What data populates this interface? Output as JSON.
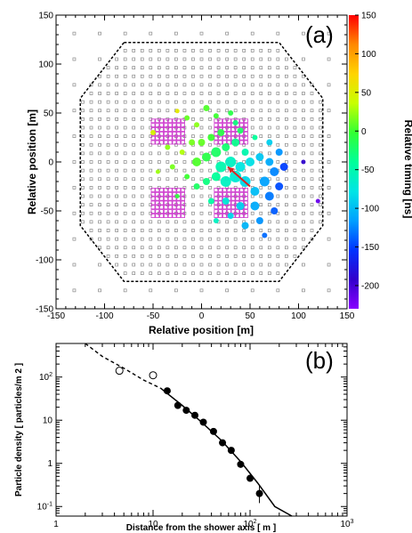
{
  "chart_data": [
    {
      "panel": "(a)",
      "type": "scatter",
      "xlabel": "Relative position [m]",
      "ylabel": "Relative position [m]",
      "xlim": [
        -150,
        150
      ],
      "ylim": [
        -150,
        150
      ],
      "xticks": [
        "-150",
        "-100",
        "-50",
        "0",
        "50",
        "100",
        "150"
      ],
      "yticks": [
        "150",
        "100",
        "50",
        "0",
        "-50",
        "-100",
        "-150"
      ],
      "colorbar": {
        "label": "Relative timing [ns]",
        "range": [
          -230,
          150
        ],
        "ticks": [
          "150",
          "100",
          "50",
          "0",
          "-50",
          "-100",
          "-150",
          "-200"
        ],
        "colors": [
          "#ff0000",
          "#ff8800",
          "#ffd400",
          "#c8ff00",
          "#33ff33",
          "#00ff99",
          "#00e5e5",
          "#00a0ff",
          "#0033ff",
          "#3300cc",
          "#8800ff"
        ]
      },
      "shower_direction_arrow": {
        "from": [
          50,
          -25
        ],
        "to": [
          27,
          -5
        ],
        "color": "#dd2222"
      },
      "array_boundary": [
        [
          -80,
          122
        ],
        [
          80,
          122
        ],
        [
          125,
          65
        ],
        [
          125,
          -65
        ],
        [
          80,
          -122
        ],
        [
          -80,
          -122
        ],
        [
          -125,
          -65
        ],
        [
          -125,
          65
        ]
      ],
      "hit_points": [
        {
          "x": -25,
          "y": 52,
          "t": 55,
          "r": 2.5
        },
        {
          "x": -50,
          "y": 30,
          "t": 45,
          "r": 3
        },
        {
          "x": -15,
          "y": 45,
          "t": 10,
          "r": 3
        },
        {
          "x": -5,
          "y": 38,
          "t": 20,
          "r": 3
        },
        {
          "x": 5,
          "y": 55,
          "t": 5,
          "r": 3.5
        },
        {
          "x": 15,
          "y": 47,
          "t": 0,
          "r": 3
        },
        {
          "x": 30,
          "y": 50,
          "t": -10,
          "r": 3
        },
        {
          "x": 40,
          "y": 32,
          "t": -20,
          "r": 3.5
        },
        {
          "x": 55,
          "y": 25,
          "t": -40,
          "r": 3
        },
        {
          "x": -35,
          "y": 15,
          "t": 20,
          "r": 3
        },
        {
          "x": -20,
          "y": 10,
          "t": 30,
          "r": 3
        },
        {
          "x": -10,
          "y": 20,
          "t": 15,
          "r": 3.5
        },
        {
          "x": 0,
          "y": 20,
          "t": 10,
          "r": 4
        },
        {
          "x": 10,
          "y": 25,
          "t": 0,
          "r": 4
        },
        {
          "x": 20,
          "y": 30,
          "t": -10,
          "r": 4
        },
        {
          "x": 25,
          "y": 15,
          "t": -25,
          "r": 4.5
        },
        {
          "x": 35,
          "y": 20,
          "t": -35,
          "r": 4.5
        },
        {
          "x": 45,
          "y": 10,
          "t": -50,
          "r": 4
        },
        {
          "x": -5,
          "y": 0,
          "t": 5,
          "r": 5
        },
        {
          "x": 5,
          "y": 5,
          "t": -10,
          "r": 5
        },
        {
          "x": 15,
          "y": 10,
          "t": -20,
          "r": 5.5
        },
        {
          "x": 20,
          "y": -5,
          "t": -50,
          "r": 6
        },
        {
          "x": 30,
          "y": 0,
          "t": -60,
          "r": 6
        },
        {
          "x": 40,
          "y": -5,
          "t": -75,
          "r": 5.5
        },
        {
          "x": 50,
          "y": 0,
          "t": -80,
          "r": 5
        },
        {
          "x": 60,
          "y": 5,
          "t": -95,
          "r": 4.5
        },
        {
          "x": 70,
          "y": 0,
          "t": -110,
          "r": 4.5
        },
        {
          "x": 75,
          "y": -10,
          "t": -125,
          "r": 5
        },
        {
          "x": 65,
          "y": -20,
          "t": -115,
          "r": 5.5
        },
        {
          "x": 55,
          "y": -30,
          "t": -100,
          "r": 5
        },
        {
          "x": 45,
          "y": -20,
          "t": -85,
          "r": 6
        },
        {
          "x": 35,
          "y": -15,
          "t": -70,
          "r": 6.5
        },
        {
          "x": 25,
          "y": -20,
          "t": -60,
          "r": 6
        },
        {
          "x": 15,
          "y": -15,
          "t": -40,
          "r": 5
        },
        {
          "x": 5,
          "y": -20,
          "t": -30,
          "r": 4
        },
        {
          "x": -5,
          "y": -25,
          "t": -20,
          "r": 3.5
        },
        {
          "x": -15,
          "y": -15,
          "t": 0,
          "r": 3
        },
        {
          "x": -30,
          "y": -5,
          "t": 15,
          "r": 3
        },
        {
          "x": -45,
          "y": -10,
          "t": 25,
          "r": 2.5
        },
        {
          "x": 10,
          "y": -40,
          "t": -45,
          "r": 3.5
        },
        {
          "x": 25,
          "y": -40,
          "t": -70,
          "r": 4
        },
        {
          "x": 40,
          "y": -45,
          "t": -90,
          "r": 4.5
        },
        {
          "x": 55,
          "y": -45,
          "t": -110,
          "r": 5
        },
        {
          "x": 70,
          "y": -35,
          "t": -130,
          "r": 5
        },
        {
          "x": 80,
          "y": -25,
          "t": -145,
          "r": 4.5
        },
        {
          "x": 75,
          "y": -50,
          "t": -140,
          "r": 4
        },
        {
          "x": 60,
          "y": -60,
          "t": -120,
          "r": 4
        },
        {
          "x": 45,
          "y": -65,
          "t": -105,
          "r": 4
        },
        {
          "x": 30,
          "y": -55,
          "t": -85,
          "r": 3.5
        },
        {
          "x": 15,
          "y": -60,
          "t": -60,
          "r": 3
        },
        {
          "x": 70,
          "y": 20,
          "t": -90,
          "r": 3.5
        },
        {
          "x": 80,
          "y": 10,
          "t": -120,
          "r": 4
        },
        {
          "x": 85,
          "y": -5,
          "t": -150,
          "r": 4.5
        },
        {
          "x": 35,
          "y": 40,
          "t": -30,
          "r": 3
        },
        {
          "x": -25,
          "y": -35,
          "t": -5,
          "r": 2.5
        },
        {
          "x": 120,
          "y": -40,
          "t": -215,
          "r": 2.5
        },
        {
          "x": 105,
          "y": 0,
          "t": -190,
          "r": 2.5
        },
        {
          "x": 65,
          "y": -75,
          "t": -135,
          "r": 3
        }
      ],
      "dense_regions": [
        {
          "x0": -50,
          "y0": 20,
          "x1": -15,
          "y1": 45
        },
        {
          "x0": 15,
          "y0": 20,
          "x1": 50,
          "y1": 45
        },
        {
          "x0": -50,
          "y0": -55,
          "x1": -15,
          "y1": -25
        },
        {
          "x0": 15,
          "y0": -55,
          "x1": 50,
          "y1": -25
        }
      ]
    },
    {
      "panel": "(b)",
      "type": "scatter",
      "xlabel": "Distance from the shower axis [ m ]",
      "ylabel": "Particle density [ particles/m 2 ]",
      "xscale": "log",
      "yscale": "log",
      "xlim": [
        1,
        1000
      ],
      "ylim": [
        0.06,
        600
      ],
      "xticks": [
        "1",
        "10",
        "10 2",
        "10 3"
      ],
      "yticks": [
        "10 2",
        "10",
        "1",
        "10 -1"
      ],
      "filled_points": [
        {
          "x": 14,
          "y": 48
        },
        {
          "x": 18,
          "y": 22
        },
        {
          "x": 22,
          "y": 17
        },
        {
          "x": 27,
          "y": 13
        },
        {
          "x": 33,
          "y": 9
        },
        {
          "x": 42,
          "y": 5.5
        },
        {
          "x": 52,
          "y": 3
        },
        {
          "x": 64,
          "y": 2
        },
        {
          "x": 80,
          "y": 0.95
        },
        {
          "x": 100,
          "y": 0.45
        },
        {
          "x": 125,
          "y": 0.2
        }
      ],
      "error_bars": [
        {
          "x": 125,
          "low": 0.12,
          "high": 0.3
        }
      ],
      "open_points": [
        {
          "x": 4.5,
          "y": 140
        },
        {
          "x": 10,
          "y": 110
        }
      ],
      "fit_curve_dashed": [
        [
          2,
          600
        ],
        [
          3,
          300
        ],
        [
          5,
          160
        ],
        [
          8,
          85
        ],
        [
          12,
          55
        ]
      ],
      "fit_curve_solid": [
        [
          12,
          55
        ],
        [
          20,
          22
        ],
        [
          30,
          10
        ],
        [
          50,
          3.5
        ],
        [
          80,
          1.1
        ],
        [
          120,
          0.35
        ],
        [
          180,
          0.1
        ],
        [
          270,
          0.06
        ]
      ]
    }
  ]
}
